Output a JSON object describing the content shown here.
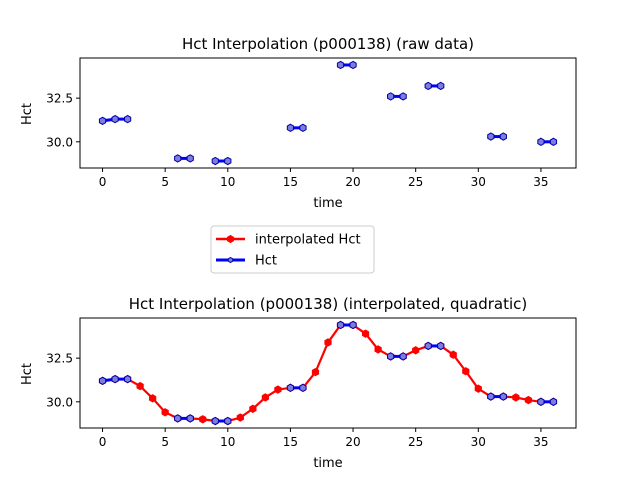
{
  "chart_data": [
    {
      "type": "line",
      "title": "Hct Interpolation (p000138) (raw data)",
      "xlabel": "time",
      "ylabel": "Hct",
      "xlim": [
        -1.8,
        37.8
      ],
      "ylim": [
        28.5,
        34.8
      ],
      "xticks": [
        0,
        5,
        10,
        15,
        20,
        25,
        30,
        35
      ],
      "yticks": [
        30.0,
        32.5
      ],
      "ytick_labels": [
        "30.0",
        "32.5"
      ],
      "series": [
        {
          "name": "Hct",
          "color": "#0000ff",
          "marker": "hexagon",
          "x": [
            0,
            1,
            2,
            6,
            7,
            9,
            10,
            15,
            16,
            19,
            20,
            23,
            24,
            26,
            27,
            31,
            32,
            35,
            36
          ],
          "values": [
            31.2,
            31.3,
            31.3,
            29.05,
            29.05,
            28.9,
            28.9,
            30.8,
            30.8,
            34.4,
            34.4,
            32.6,
            32.6,
            33.2,
            33.2,
            30.3,
            30.3,
            30.0,
            30.0
          ]
        }
      ]
    },
    {
      "type": "line",
      "title": "Hct Interpolation (p000138) (interpolated, quadratic)",
      "xlabel": "time",
      "ylabel": "Hct",
      "xlim": [
        -1.8,
        37.8
      ],
      "ylim": [
        28.5,
        34.8
      ],
      "xticks": [
        0,
        5,
        10,
        15,
        20,
        25,
        30,
        35
      ],
      "yticks": [
        30.0,
        32.5
      ],
      "ytick_labels": [
        "30.0",
        "32.5"
      ],
      "series": [
        {
          "name": "interpolated Hct",
          "color": "#ff0000",
          "marker": "hexagon",
          "x": [
            0,
            1,
            2,
            3,
            4,
            5,
            6,
            7,
            8,
            9,
            10,
            11,
            12,
            13,
            14,
            15,
            16,
            17,
            18,
            19,
            20,
            21,
            22,
            23,
            24,
            25,
            26,
            27,
            28,
            29,
            30,
            31,
            32,
            33,
            34,
            35,
            36
          ],
          "values": [
            31.2,
            31.3,
            31.3,
            30.9,
            30.2,
            29.4,
            29.05,
            29.05,
            29.0,
            28.9,
            28.9,
            29.1,
            29.6,
            30.25,
            30.7,
            30.8,
            30.8,
            31.7,
            33.4,
            34.4,
            34.4,
            33.9,
            33.0,
            32.6,
            32.6,
            32.95,
            33.2,
            33.2,
            32.7,
            31.75,
            30.75,
            30.3,
            30.3,
            30.25,
            30.1,
            30.0,
            30.0
          ]
        },
        {
          "name": "Hct",
          "color": "#0000ff",
          "marker": "hexagon",
          "x": [
            0,
            1,
            2,
            6,
            7,
            9,
            10,
            15,
            16,
            19,
            20,
            23,
            24,
            26,
            27,
            31,
            32,
            35,
            36
          ],
          "values": [
            31.2,
            31.3,
            31.3,
            29.05,
            29.05,
            28.9,
            28.9,
            30.8,
            30.8,
            34.4,
            34.4,
            32.6,
            32.6,
            33.2,
            33.2,
            30.3,
            30.3,
            30.0,
            30.0
          ]
        }
      ]
    }
  ],
  "legend": {
    "items": [
      {
        "label": "interpolated Hct",
        "color": "#ff0000"
      },
      {
        "label": "Hct",
        "color": "#0000ff"
      }
    ]
  }
}
